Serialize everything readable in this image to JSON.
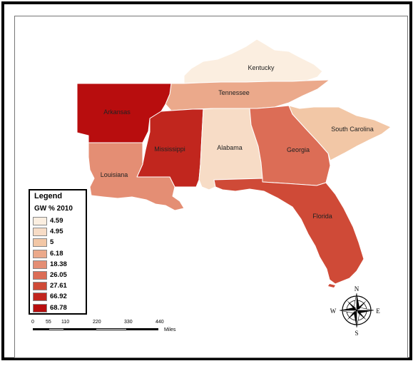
{
  "legend": {
    "title": "Legend",
    "field": "GW % 2010",
    "classes": [
      {
        "value": "4.59",
        "color": "#fbeee0"
      },
      {
        "value": "4.95",
        "color": "#f7dcc6"
      },
      {
        "value": "5",
        "color": "#f2c7a6"
      },
      {
        "value": "6.18",
        "color": "#eba98b"
      },
      {
        "value": "18.38",
        "color": "#e48e74"
      },
      {
        "value": "26.05",
        "color": "#dc6d56"
      },
      {
        "value": "27.61",
        "color": "#cf4a37"
      },
      {
        "value": "66.92",
        "color": "#c1261e"
      },
      {
        "value": "68.78",
        "color": "#b80d0e"
      }
    ]
  },
  "states": [
    {
      "name": "Kentucky",
      "value": "4.59",
      "color": "#fbeee0"
    },
    {
      "name": "Tennessee",
      "value": "6.18",
      "color": "#eba98b"
    },
    {
      "name": "Arkansas",
      "value": "68.78",
      "color": "#b80d0e"
    },
    {
      "name": "Mississippi",
      "value": "66.92",
      "color": "#c1261e"
    },
    {
      "name": "Alabama",
      "value": "4.95",
      "color": "#f7dcc6"
    },
    {
      "name": "Georgia",
      "value": "26.05",
      "color": "#dc6d56"
    },
    {
      "name": "South Carolina",
      "value": "5",
      "color": "#f2c7a6"
    },
    {
      "name": "Louisiana",
      "value": "18.38",
      "color": "#e48e74"
    },
    {
      "name": "Florida",
      "value": "27.61",
      "color": "#cf4a37"
    }
  ],
  "scale_bar": {
    "ticks": [
      "0",
      "55",
      "110",
      "220",
      "330",
      "440"
    ],
    "unit": "Miles"
  },
  "north_arrow": {
    "n": "N",
    "s": "S",
    "e": "E",
    "w": "W"
  }
}
